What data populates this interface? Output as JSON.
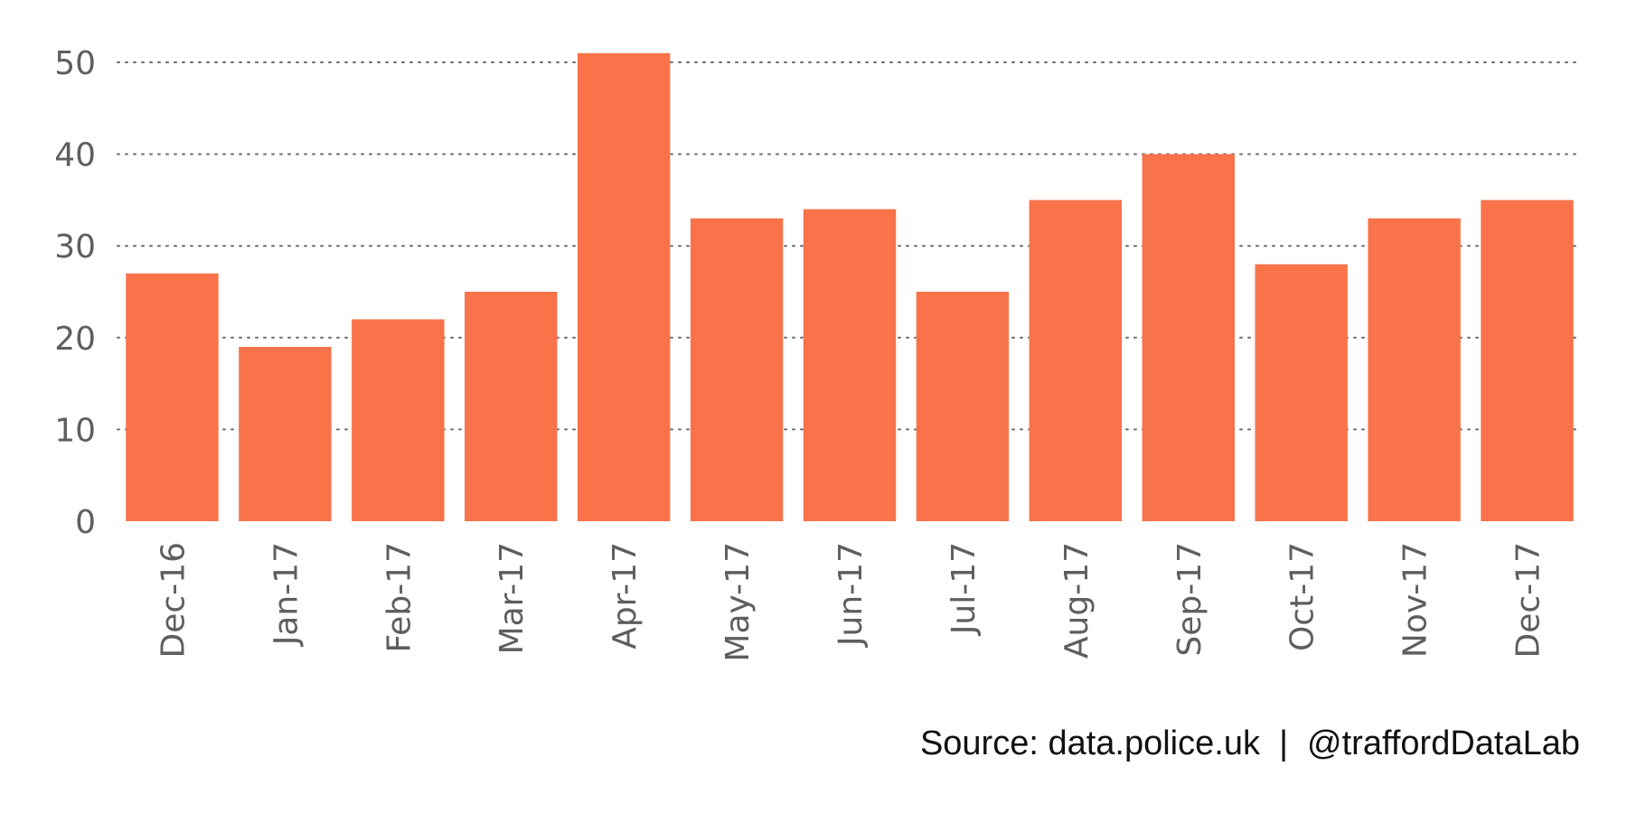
{
  "colors": {
    "bar": "#f8734a",
    "axis_text": "#5e5e5e",
    "grid": "#6b6b6b",
    "caption": "#111111"
  },
  "caption": {
    "text": "Source: data.police.uk  |  @traffordDataLab"
  },
  "chart_data": {
    "type": "bar",
    "title": "",
    "xlabel": "",
    "ylabel": "",
    "categories": [
      "Dec-16",
      "Jan-17",
      "Feb-17",
      "Mar-17",
      "Apr-17",
      "May-17",
      "Jun-17",
      "Jul-17",
      "Aug-17",
      "Sep-17",
      "Oct-17",
      "Nov-17",
      "Dec-17"
    ],
    "values": [
      27,
      19,
      22,
      25,
      51,
      33,
      34,
      25,
      35,
      40,
      28,
      33,
      35
    ],
    "ylim": [
      0,
      51
    ],
    "yticks": [
      0,
      10,
      20,
      30,
      40,
      50
    ],
    "grid": "horizontal dotted",
    "legend": "none"
  }
}
